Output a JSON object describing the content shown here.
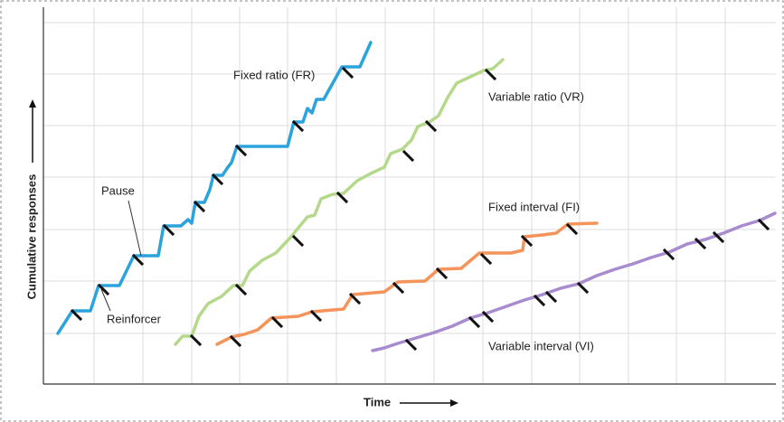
{
  "axes": {
    "y_label": "Cumulative responses",
    "x_label": "Time"
  },
  "curves": [
    {
      "label": "Fixed ratio (FR)"
    },
    {
      "label": "Variable ratio (VR)"
    },
    {
      "label": "Fixed interval (FI)"
    },
    {
      "label": "Variable interval (VI)"
    }
  ],
  "annotations": {
    "pause": "Pause",
    "reinforcer": "Reinforcer"
  }
}
